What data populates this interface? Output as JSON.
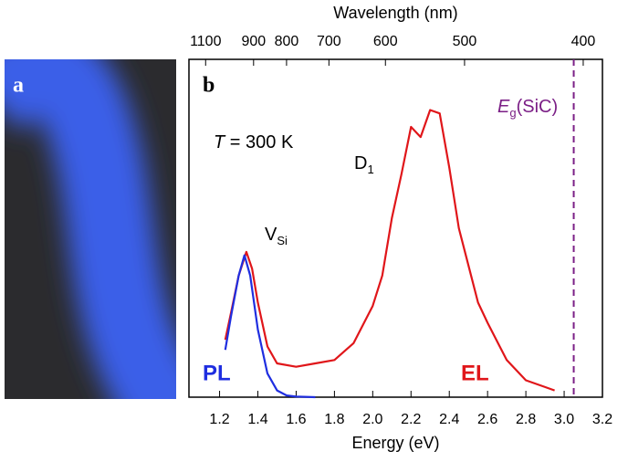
{
  "chart_data": {
    "type": "line",
    "panel_labels": [
      "a",
      "b"
    ],
    "xlabel": "Energy (eV)",
    "x2label": "Wavelength (nm)",
    "xlim": [
      1.04,
      3.2
    ],
    "ylim": [
      0,
      1
    ],
    "xticks": [
      1.2,
      1.4,
      1.6,
      1.8,
      {
        "value": 2,
        "label": "2.0"
      },
      2.2,
      2.4,
      2.6,
      2.8,
      {
        "value": 3,
        "label": "3.0"
      },
      3.2
    ],
    "x2ticks": [
      1100,
      900,
      800,
      700,
      600,
      500,
      400
    ],
    "series": [
      {
        "name": "EL",
        "color": "#e0161a",
        "x": [
          1.23,
          1.26,
          1.3,
          1.34,
          1.37,
          1.4,
          1.45,
          1.5,
          1.6,
          1.7,
          1.8,
          1.9,
          2.0,
          2.05,
          2.1,
          2.15,
          2.2,
          2.25,
          2.3,
          2.35,
          2.4,
          2.45,
          2.5,
          2.55,
          2.6,
          2.7,
          2.8,
          2.9,
          2.95
        ],
        "values": [
          0.17,
          0.25,
          0.36,
          0.43,
          0.38,
          0.28,
          0.15,
          0.1,
          0.09,
          0.1,
          0.11,
          0.16,
          0.27,
          0.36,
          0.53,
          0.66,
          0.8,
          0.77,
          0.85,
          0.84,
          0.68,
          0.5,
          0.39,
          0.28,
          0.22,
          0.11,
          0.05,
          0.03,
          0.02
        ]
      },
      {
        "name": "PL",
        "color": "#1f2ee0",
        "x": [
          1.23,
          1.26,
          1.3,
          1.33,
          1.36,
          1.4,
          1.45,
          1.5,
          1.55,
          1.6,
          1.7
        ],
        "values": [
          0.14,
          0.24,
          0.36,
          0.42,
          0.36,
          0.2,
          0.07,
          0.02,
          0.005,
          0.002,
          0
        ]
      }
    ],
    "vline": {
      "x": 3.05,
      "color": "#7b1f86"
    },
    "annotations": [
      {
        "italic": "T",
        "text": " = 300 K"
      },
      {
        "text": "D",
        "sub": "1"
      },
      {
        "text": "V",
        "sub": "Si"
      },
      {
        "italic": "E",
        "sub": "g",
        "text": "(SiC)"
      }
    ]
  }
}
